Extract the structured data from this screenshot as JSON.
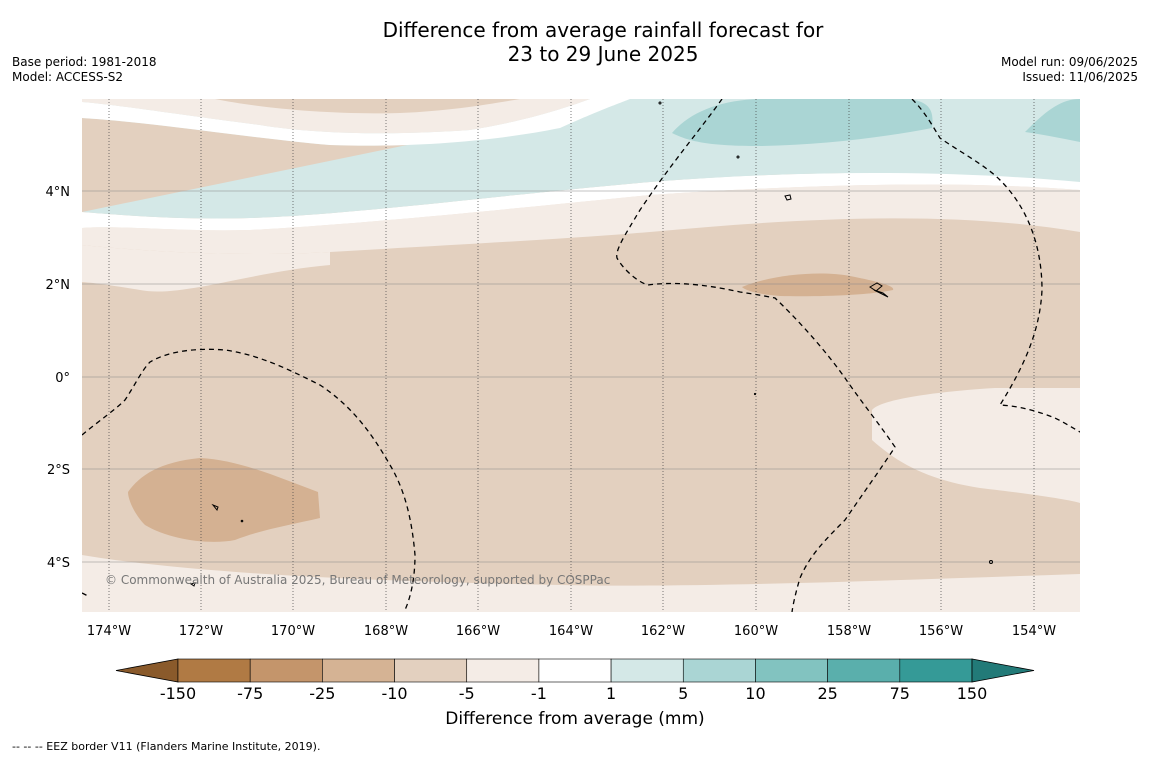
{
  "title_line1": "Difference from average rainfall forecast for",
  "title_line2": "23 to 29 June 2025",
  "base_period": "Base period: 1981-2018",
  "model": "Model: ACCESS-S2",
  "model_run": "Model run: 09/06/2025",
  "issued": "Issued: 11/06/2025",
  "copyright": "© Commonwealth of Australia 2025, Bureau of Meteorology, supported by COSPPac",
  "lat_labels": [
    "4°N",
    "2°N",
    "0°",
    "2°S",
    "4°S"
  ],
  "lon_labels": [
    "174°W",
    "172°W",
    "170°W",
    "168°W",
    "166°W",
    "164°W",
    "162°W",
    "160°W",
    "158°W",
    "156°W",
    "154°W"
  ],
  "colorbar": {
    "title": "Difference from average (mm)",
    "ticks": [
      "-150",
      "-75",
      "-25",
      "-10",
      "-5",
      "-1",
      "1",
      "5",
      "10",
      "25",
      "75",
      "150"
    ],
    "colors": [
      "#8a5a2b",
      "#b07a44",
      "#c4956b",
      "#d5b394",
      "#e3d0bf",
      "#f4ece6",
      "#ffffff",
      "#d4e8e7",
      "#aad5d4",
      "#82c3c0",
      "#5aafac",
      "#359a97",
      "#227a78"
    ]
  },
  "footer": "--  --  -- EEZ border V11 (Flanders Marine Institute, 2019)."
}
